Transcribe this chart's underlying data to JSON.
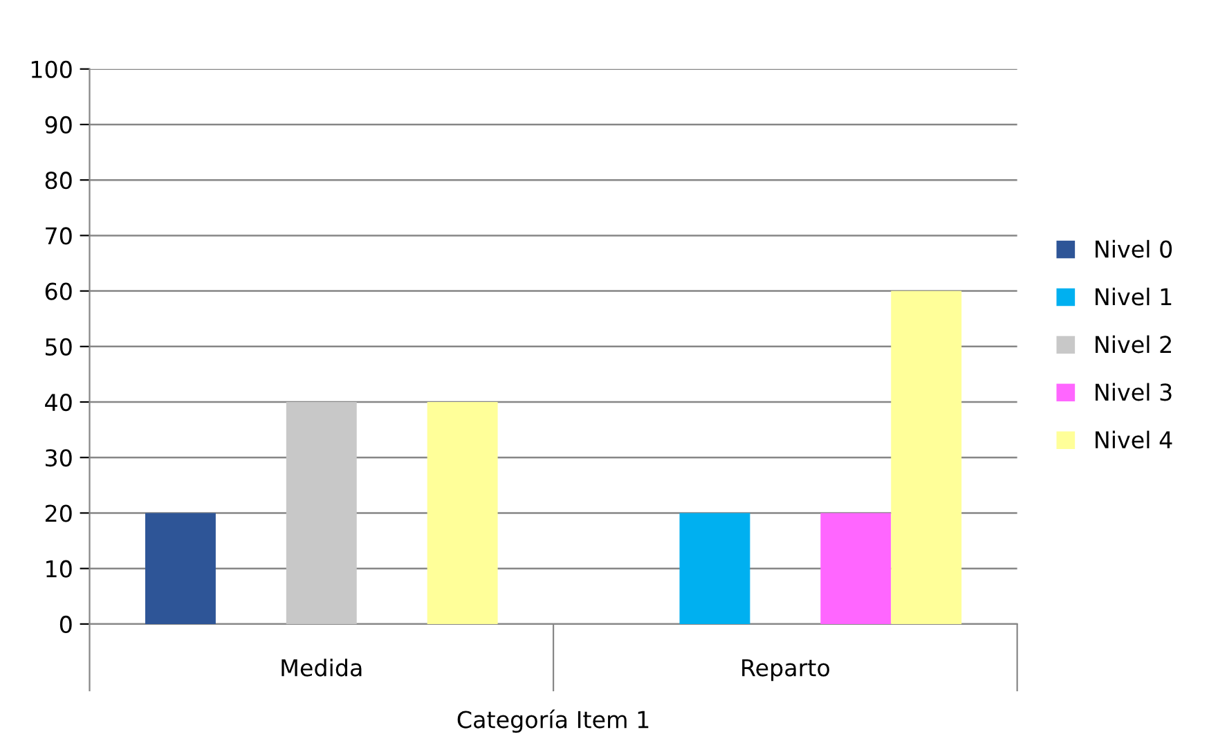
{
  "chart_data": {
    "type": "bar",
    "xlabel": "Categoría Item 1",
    "categories": [
      "Medida",
      "Reparto"
    ],
    "series": [
      {
        "name": "Nivel 0",
        "color": "#2e5597",
        "values": [
          20,
          null
        ]
      },
      {
        "name": "Nivel 1",
        "color": "#00b0f0",
        "values": [
          null,
          20
        ]
      },
      {
        "name": "Nivel 2",
        "color": "#c8c8c8",
        "values": [
          40,
          null
        ]
      },
      {
        "name": "Nivel 3",
        "color": "#ff66ff",
        "values": [
          null,
          20
        ]
      },
      {
        "name": "Nivel 4",
        "color": "#ffff99",
        "values": [
          40,
          60
        ]
      }
    ],
    "ylim": [
      0,
      100
    ],
    "yticks": [
      0,
      10,
      20,
      30,
      40,
      50,
      60,
      70,
      80,
      90,
      100
    ],
    "grid": "y",
    "legend": "right"
  }
}
